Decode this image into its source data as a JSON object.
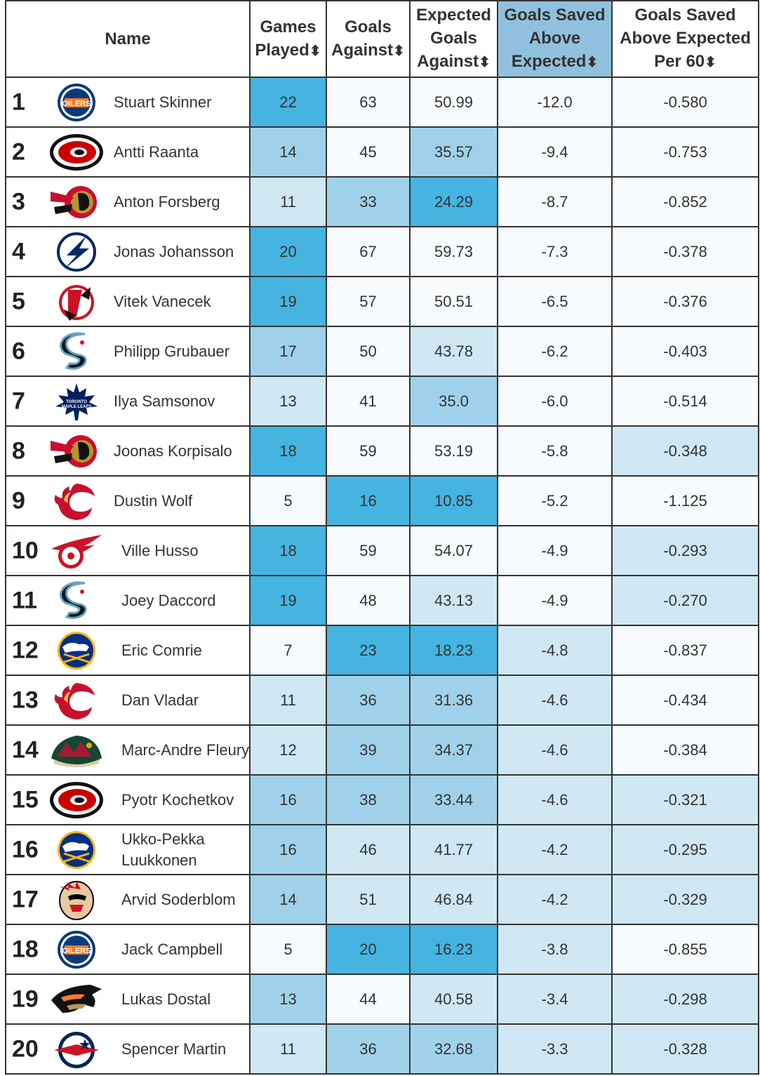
{
  "headers": {
    "name": "Name",
    "games_played": "Games Played",
    "goals_against": "Goals Against",
    "expected_goals_against": "Expected Goals Against",
    "gsax": "Goals Saved Above Expected",
    "gsax_per60": "Goals Saved Above Expected Per 60",
    "sort_icon": "⬍"
  },
  "rows": [
    {
      "rank": "1",
      "team_logo": "oilers-logo",
      "name": "Stuart Skinner",
      "gp": "22",
      "ga": "63",
      "xga": "50.99",
      "gsax": "-12.0",
      "gsax60": "-0.580"
    },
    {
      "rank": "2",
      "team_logo": "hurricanes-logo",
      "name": "Antti Raanta",
      "gp": "14",
      "ga": "45",
      "xga": "35.57",
      "gsax": "-9.4",
      "gsax60": "-0.753"
    },
    {
      "rank": "3",
      "team_logo": "senators-logo",
      "name": "Anton Forsberg",
      "gp": "11",
      "ga": "33",
      "xga": "24.29",
      "gsax": "-8.7",
      "gsax60": "-0.852"
    },
    {
      "rank": "4",
      "team_logo": "lightning-logo",
      "name": "Jonas Johansson",
      "gp": "20",
      "ga": "67",
      "xga": "59.73",
      "gsax": "-7.3",
      "gsax60": "-0.378"
    },
    {
      "rank": "5",
      "team_logo": "devils-logo",
      "name": "Vitek Vanecek",
      "gp": "19",
      "ga": "57",
      "xga": "50.51",
      "gsax": "-6.5",
      "gsax60": "-0.376"
    },
    {
      "rank": "6",
      "team_logo": "kraken-logo",
      "name": "Philipp Grubauer",
      "gp": "17",
      "ga": "50",
      "xga": "43.78",
      "gsax": "-6.2",
      "gsax60": "-0.403"
    },
    {
      "rank": "7",
      "team_logo": "maple-leafs-logo",
      "name": "Ilya Samsonov",
      "gp": "13",
      "ga": "41",
      "xga": "35.0",
      "gsax": "-6.0",
      "gsax60": "-0.514"
    },
    {
      "rank": "8",
      "team_logo": "senators-logo",
      "name": "Joonas Korpisalo",
      "gp": "18",
      "ga": "59",
      "xga": "53.19",
      "gsax": "-5.8",
      "gsax60": "-0.348"
    },
    {
      "rank": "9",
      "team_logo": "flames-logo",
      "name": "Dustin Wolf",
      "gp": "5",
      "ga": "16",
      "xga": "10.85",
      "gsax": "-5.2",
      "gsax60": "-1.125"
    },
    {
      "rank": "10",
      "team_logo": "red-wings-logo",
      "name": "Ville Husso",
      "gp": "18",
      "ga": "59",
      "xga": "54.07",
      "gsax": "-4.9",
      "gsax60": "-0.293"
    },
    {
      "rank": "11",
      "team_logo": "kraken-logo",
      "name": "Joey Daccord",
      "gp": "19",
      "ga": "48",
      "xga": "43.13",
      "gsax": "-4.9",
      "gsax60": "-0.270"
    },
    {
      "rank": "12",
      "team_logo": "sabres-logo",
      "name": "Eric Comrie",
      "gp": "7",
      "ga": "23",
      "xga": "18.23",
      "gsax": "-4.8",
      "gsax60": "-0.837"
    },
    {
      "rank": "13",
      "team_logo": "flames-logo",
      "name": "Dan Vladar",
      "gp": "11",
      "ga": "36",
      "xga": "31.36",
      "gsax": "-4.6",
      "gsax60": "-0.434"
    },
    {
      "rank": "14",
      "team_logo": "wild-logo",
      "name": "Marc-Andre Fleury",
      "gp": "12",
      "ga": "39",
      "xga": "34.37",
      "gsax": "-4.6",
      "gsax60": "-0.384"
    },
    {
      "rank": "15",
      "team_logo": "hurricanes-logo",
      "name": "Pyotr Kochetkov",
      "gp": "16",
      "ga": "38",
      "xga": "33.44",
      "gsax": "-4.6",
      "gsax60": "-0.321"
    },
    {
      "rank": "16",
      "team_logo": "sabres-logo",
      "name": "Ukko-Pekka Luukkonen",
      "gp": "16",
      "ga": "46",
      "xga": "41.77",
      "gsax": "-4.2",
      "gsax60": "-0.295"
    },
    {
      "rank": "17",
      "team_logo": "blackhawks-logo",
      "name": "Arvid Soderblom",
      "gp": "14",
      "ga": "51",
      "xga": "46.84",
      "gsax": "-4.2",
      "gsax60": "-0.329"
    },
    {
      "rank": "18",
      "team_logo": "oilers-logo",
      "name": "Jack Campbell",
      "gp": "5",
      "ga": "20",
      "xga": "16.23",
      "gsax": "-3.8",
      "gsax60": "-0.855"
    },
    {
      "rank": "19",
      "team_logo": "ducks-logo",
      "name": "Lukas Dostal",
      "gp": "13",
      "ga": "44",
      "xga": "40.58",
      "gsax": "-3.4",
      "gsax60": "-0.298"
    },
    {
      "rank": "20",
      "team_logo": "blue-jackets-logo",
      "name": "Spencer Martin",
      "gp": "11",
      "ga": "36",
      "xga": "32.68",
      "gsax": "-3.3",
      "gsax60": "-0.328"
    }
  ],
  "shading": {
    "gp": [
      3,
      2,
      1,
      3,
      3,
      2,
      1,
      3,
      0,
      3,
      3,
      0,
      1,
      1,
      2,
      2,
      2,
      0,
      2,
      1
    ],
    "ga": [
      0,
      0,
      2,
      0,
      0,
      0,
      0,
      0,
      3,
      0,
      0,
      3,
      2,
      2,
      2,
      1,
      1,
      3,
      0,
      2
    ],
    "xga": [
      0,
      2,
      3,
      0,
      0,
      1,
      2,
      0,
      3,
      0,
      1,
      3,
      2,
      2,
      2,
      1,
      1,
      3,
      1,
      2
    ],
    "gsax": [
      0,
      0,
      0,
      0,
      0,
      0,
      0,
      0,
      0,
      0,
      0,
      1,
      1,
      1,
      1,
      1,
      1,
      1,
      1,
      1
    ],
    "gsax60": [
      0,
      0,
      0,
      0,
      0,
      0,
      0,
      1,
      0,
      1,
      1,
      0,
      0,
      0,
      1,
      1,
      1,
      0,
      1,
      1
    ]
  },
  "colors": {
    "level0": "#f7fbfd",
    "level1": "#cfe8f3",
    "level2": "#9fd2ea",
    "level3": "#45b4e0",
    "sorted_header": "#8fc1de"
  }
}
